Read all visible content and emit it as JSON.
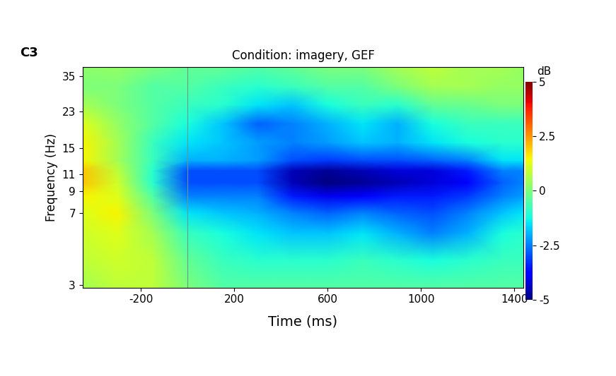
{
  "chart_data": {
    "type": "heatmap",
    "title": "Condition: imagery, GEF",
    "panel_label": "C3",
    "x_label": "Time (ms)",
    "y_label": "Frequency (Hz)",
    "log": "y",
    "x": [
      -450,
      -300,
      -150,
      0,
      150,
      300,
      450,
      600,
      750,
      900,
      1050,
      1200,
      1350,
      1440
    ],
    "y": [
      2.9,
      4,
      5.5,
      7,
      8.5,
      10,
      11.5,
      13,
      16,
      20,
      25,
      31,
      39
    ],
    "cells": [
      [
        0.5,
        0.8,
        0.8,
        0,
        -0.5,
        -0.5,
        -0.5,
        -0.5,
        -0.5,
        -0.5,
        -0.5,
        -0.5,
        -0.5,
        -0.5
      ],
      [
        0.8,
        1,
        0.8,
        -0.3,
        -0.8,
        -1,
        -1,
        -1,
        -0.8,
        -1,
        -1.2,
        -1,
        -0.8,
        -0.8
      ],
      [
        1,
        1.2,
        0.5,
        -0.8,
        -1.2,
        -1.5,
        -1.8,
        -1.8,
        -1.5,
        -2,
        -2.5,
        -2,
        -1.2,
        -1
      ],
      [
        1.2,
        1.5,
        0,
        -1.5,
        -1.8,
        -2,
        -2.5,
        -2.8,
        -2.5,
        -2.8,
        -3,
        -2.5,
        -1.8,
        -1.5
      ],
      [
        1.5,
        1.2,
        -0.5,
        -2.5,
        -2.5,
        -2.5,
        -3.5,
        -4,
        -3.8,
        -3.5,
        -3.5,
        -3.2,
        -2.5,
        -2.2
      ],
      [
        2,
        1,
        -1,
        -3,
        -3,
        -3,
        -4.5,
        -5,
        -4.8,
        -4.5,
        -4.2,
        -3.8,
        -2.8,
        -2.5
      ],
      [
        2,
        0.8,
        -1,
        -3,
        -3,
        -3,
        -4.5,
        -4.8,
        -4.5,
        -4.2,
        -4.2,
        -3.5,
        -2.5,
        -2.5
      ],
      [
        1.5,
        0.5,
        -0.8,
        -2,
        -2,
        -2.2,
        -3,
        -3.2,
        -3,
        -3,
        -2.8,
        -2.5,
        -1.5,
        -1.5
      ],
      [
        1.5,
        0.5,
        -0.8,
        -1.5,
        -1.8,
        -2.2,
        -2.5,
        -2.2,
        -1.8,
        -2,
        -1.5,
        -1.2,
        -1,
        -1
      ],
      [
        1.2,
        0.3,
        -0.5,
        -1.2,
        -1.8,
        -2.8,
        -2.5,
        -2,
        -1.5,
        -2,
        -1.2,
        -0.8,
        -0.8,
        -0.8
      ],
      [
        0.5,
        0,
        -0.5,
        -0.8,
        -1,
        -1.5,
        -1.8,
        -1.2,
        -0.8,
        -1,
        -0.3,
        -0.2,
        0,
        0
      ],
      [
        0,
        0,
        -0.5,
        -0.5,
        -0.8,
        -1,
        -0.8,
        -0.5,
        -0.5,
        0,
        0.5,
        0.5,
        0.3,
        0.3
      ],
      [
        0.2,
        0.3,
        0,
        -0.3,
        -0.3,
        -0.5,
        -0.3,
        0,
        0,
        0.5,
        0.8,
        0.5,
        0.5,
        0.3
      ]
    ],
    "xlim": [
      -450,
      1440
    ],
    "ylim": [
      2.9,
      39
    ],
    "xticks": [
      -200,
      200,
      600,
      1000,
      1400
    ],
    "yticks": [
      3,
      7,
      9,
      11,
      15,
      23,
      35
    ],
    "vlines": [
      0
    ],
    "colorbar_label": "dB",
    "colorbar_range": [
      -5,
      5
    ],
    "colorbar_ticks": [
      5,
      2.5,
      0,
      -2.5,
      -5
    ]
  }
}
